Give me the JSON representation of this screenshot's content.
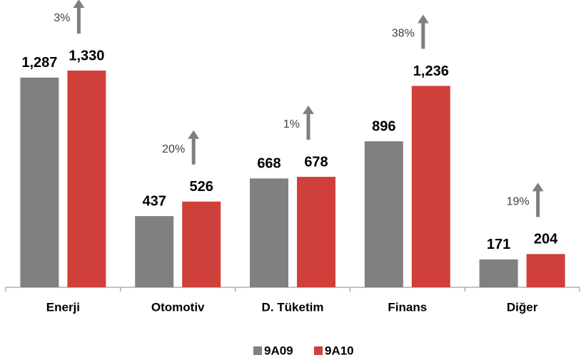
{
  "chart_data": {
    "type": "bar",
    "categories": [
      "Enerji",
      "Otomotiv",
      "D. Tüketim",
      "Finans",
      "Diğer"
    ],
    "series": [
      {
        "name": "9A09",
        "color": "#808080",
        "values": [
          1287,
          437,
          668,
          896,
          171
        ],
        "value_labels": [
          "1,287",
          "437",
          "668",
          "896",
          "171"
        ]
      },
      {
        "name": "9A10",
        "color": "#d0403a",
        "values": [
          1330,
          526,
          678,
          1236,
          204
        ],
        "value_labels": [
          "1,330",
          "526",
          "678",
          "1,236",
          "204"
        ]
      }
    ],
    "annotations": [
      "3%",
      "20%",
      "1%",
      "38%",
      "19%"
    ],
    "legend": "bottom"
  }
}
